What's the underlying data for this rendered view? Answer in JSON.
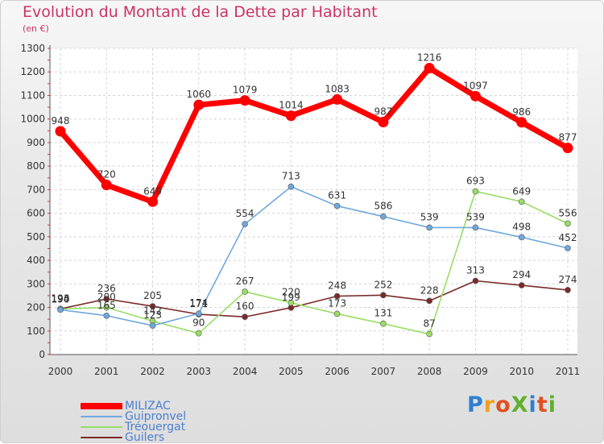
{
  "chart_data": {
    "type": "line",
    "title": "Evolution du Montant de la Dette par Habitant",
    "subtitle": "(en €)",
    "x": [
      "2000",
      "2001",
      "2002",
      "2003",
      "2004",
      "2005",
      "2006",
      "2007",
      "2008",
      "2009",
      "2010",
      "2011"
    ],
    "ylim": [
      0,
      1300
    ],
    "yticks": [
      0,
      100,
      200,
      300,
      400,
      500,
      600,
      700,
      800,
      900,
      1000,
      1100,
      1200,
      1300
    ],
    "grid": true,
    "legend_position": "bottom-left",
    "series": [
      {
        "name": "MILIZAC",
        "color": "#ff0000",
        "values": [
          948,
          720,
          649,
          1060,
          1079,
          1014,
          1083,
          987,
          1216,
          1097,
          986,
          877
        ]
      },
      {
        "name": "Guipronvel",
        "color": "#6fa8dc",
        "values": [
          190,
          165,
          123,
          174,
          554,
          713,
          631,
          586,
          539,
          539,
          498,
          452
        ]
      },
      {
        "name": "Tréouergat",
        "color": "#99dd66",
        "values": [
          193,
          200,
          142,
          90,
          267,
          220,
          173,
          131,
          87,
          693,
          649,
          556
        ]
      },
      {
        "name": "Guilers",
        "color": "#7a2a2a",
        "values": [
          194,
          236,
          205,
          171,
          160,
          199,
          248,
          252,
          228,
          313,
          294,
          274
        ]
      }
    ]
  },
  "logo": {
    "text": "ProXiti",
    "colors": [
      "#2f7fd0",
      "#f0a020",
      "#e05020",
      "#60b030",
      "#2f7fd0",
      "#e05020",
      "#60b030"
    ]
  }
}
